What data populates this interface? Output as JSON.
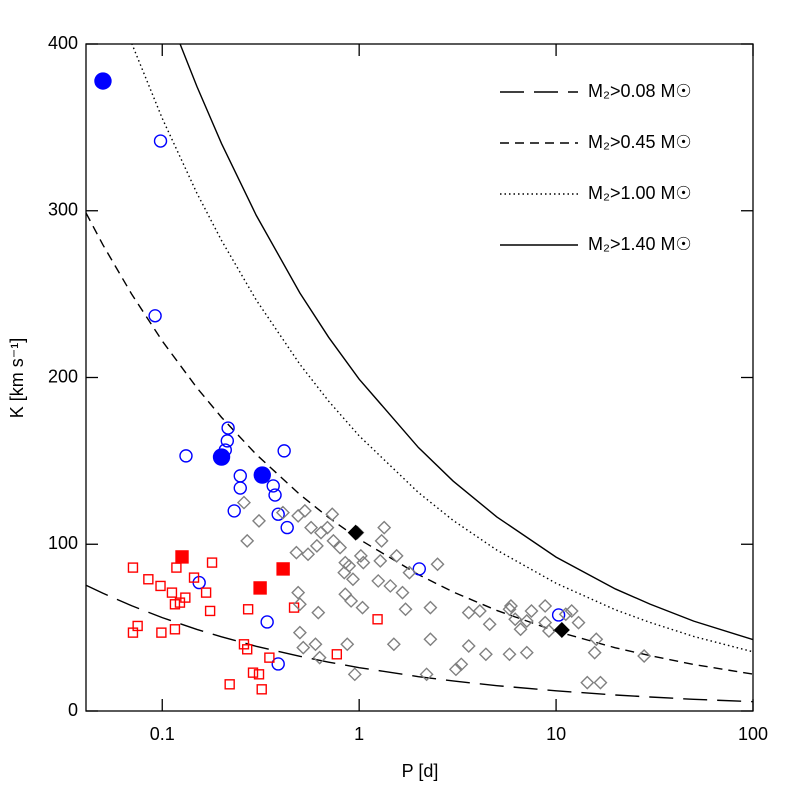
{
  "chart_data": {
    "type": "scatter",
    "x_label": "P [d]",
    "y_label": "K [km s⁻¹]",
    "xlim": [
      0.041,
      100
    ],
    "xscale": "log",
    "xticks": [
      0.1,
      1,
      10,
      100
    ],
    "ylim": [
      0,
      400
    ],
    "yticks": [
      0,
      100,
      200,
      300,
      400
    ],
    "legend": "upper right",
    "series": [
      {
        "name": "M₂>0.08 M☉",
        "color": "#000000",
        "line_style": "long-dash",
        "x": [
          0.041,
          0.05,
          0.07,
          0.1,
          0.15,
          0.2,
          0.3,
          0.5,
          0.7,
          1,
          2,
          3,
          5,
          10,
          20,
          30,
          50,
          100
        ],
        "values": [
          75.4,
          70.6,
          63.1,
          56.0,
          48.9,
          44.5,
          38.8,
          32.8,
          29.3,
          26,
          20.6,
          18.0,
          15.2,
          12.1,
          9.6,
          8.4,
          7.0,
          5.6
        ]
      },
      {
        "name": "M₂>0.45 M☉",
        "color": "#000000",
        "line_style": "dash",
        "x": [
          0.041,
          0.05,
          0.07,
          0.1,
          0.15,
          0.2,
          0.3,
          0.5,
          0.7,
          1,
          2,
          3,
          5,
          10,
          20,
          30,
          50,
          100
        ],
        "values": [
          298.7,
          279.5,
          249.9,
          221.9,
          193.8,
          176.1,
          153.9,
          129.8,
          116.0,
          103,
          81.8,
          71.4,
          60.3,
          47.8,
          37.9,
          33.2,
          27.9,
          22.1
        ]
      },
      {
        "name": "M₂>1.00 M☉",
        "color": "#000000",
        "line_style": "dotted",
        "x": [
          0.07,
          0.1,
          0.15,
          0.2,
          0.3,
          0.5,
          0.7,
          1,
          2,
          3,
          5,
          10,
          20,
          30,
          50,
          100
        ],
        "values": [
          400.3,
          355.4,
          310.5,
          282.2,
          246.5,
          207.9,
          185.8,
          165,
          131.0,
          114.3,
          96.5,
          76.6,
          60.7,
          53.1,
          44.7,
          35.5
        ]
      },
      {
        "name": "M₂>1.40 M☉",
        "color": "#000000",
        "line_style": "solid",
        "x": [
          0.123,
          0.15,
          0.2,
          0.3,
          0.5,
          0.7,
          1,
          2,
          3,
          5,
          10,
          20,
          30,
          50,
          100
        ],
        "values": [
          400.2,
          374.5,
          340.3,
          297.3,
          250.7,
          224.1,
          199,
          158.0,
          137.9,
          116.4,
          92.3,
          73.2,
          64.1,
          53.9,
          42.8
        ]
      },
      {
        "color": "#0000ff",
        "marker": "circle",
        "filled": true,
        "x": [
          0.05,
          0.2,
          0.322
        ],
        "values": [
          377.8,
          152.3,
          141.5
        ]
      },
      {
        "color": "#0000ff",
        "marker": "circle",
        "filled": false,
        "x": [
          0.098,
          0.092,
          0.216,
          0.214,
          0.209,
          0.132,
          0.416,
          0.249,
          0.249,
          0.366,
          0.374,
          0.388,
          0.232,
          0.431,
          0.154,
          0.341,
          0.388,
          2.02,
          10.3
        ],
        "values": [
          341.8,
          237,
          169.7,
          162,
          156.5,
          153,
          156,
          141,
          133.7,
          135,
          129.5,
          118,
          120,
          110,
          77,
          53.4,
          28.2,
          85.2,
          57.6
        ]
      },
      {
        "color": "#ff0000",
        "marker": "square",
        "filled": true,
        "x": [
          0.126,
          0.314,
          0.411
        ],
        "values": [
          92.4,
          73.8,
          85.2
        ]
      },
      {
        "color": "#ff0000",
        "marker": "square",
        "filled": false,
        "x": [
          0.071,
          0.085,
          0.098,
          0.118,
          0.112,
          0.123,
          0.116,
          0.131,
          0.145,
          0.167,
          0.179,
          0.175,
          0.116,
          0.099,
          0.071,
          0.075,
          0.273,
          0.467,
          0.26,
          0.27,
          0.289,
          0.31,
          0.22,
          0.32,
          0.35,
          0.77,
          1.24
        ],
        "values": [
          86,
          79,
          75,
          86,
          71,
          65,
          64,
          68,
          80,
          71,
          89,
          60,
          49,
          47,
          47,
          51,
          61,
          62,
          40,
          37,
          23,
          22,
          16,
          13,
          32,
          34,
          55
        ]
      },
      {
        "color": "#808080",
        "marker": "diamond",
        "filled": false,
        "x": [
          0.26,
          0.31,
          0.27,
          0.41,
          0.49,
          0.53,
          0.57,
          0.64,
          0.69,
          0.74,
          0.61,
          0.48,
          0.55,
          0.8,
          0.85,
          0.73,
          0.98,
          1.02,
          0.84,
          0.89,
          0.93,
          1.05,
          1.25,
          1.34,
          1.3,
          1.28,
          1.55,
          1.8,
          2.5,
          0.49,
          0.5,
          0.62,
          0.85,
          0.91,
          1.04,
          1.44,
          1.66,
          1.72,
          2.3,
          0.5,
          0.52,
          0.6,
          0.63,
          0.87,
          0.95,
          1.5,
          2.3,
          2.2,
          3.1,
          3.3,
          3.6,
          4.1,
          4.6,
          4.4,
          3.6,
          5.8,
          5.9,
          6.2,
          6.6,
          5.8,
          7.1,
          7.1,
          7.5,
          8.8,
          8.8,
          9.2,
          11.2,
          12,
          13,
          16,
          15.7,
          14.4,
          16.8,
          28
        ],
        "values": [
          125,
          114,
          102,
          119,
          117,
          120,
          110,
          107,
          110,
          102,
          99,
          95,
          94,
          98,
          89,
          118,
          107,
          93,
          83,
          87,
          79,
          89,
          78,
          110,
          102,
          90,
          93,
          83,
          88,
          71,
          64,
          59,
          70,
          66,
          62,
          75,
          71,
          61,
          62,
          47,
          38,
          40,
          32,
          40,
          22,
          40,
          43,
          22,
          25,
          28,
          59,
          60,
          52,
          34,
          39,
          61,
          63,
          55,
          49,
          34,
          35,
          54,
          60,
          63,
          53,
          48,
          58,
          60,
          53,
          43,
          35,
          17,
          17,
          33
        ]
      },
      {
        "color": "#000000",
        "marker": "diamond",
        "filled": true,
        "x": [
          0.96,
          10.7
        ],
        "values": [
          107,
          48.6
        ]
      }
    ]
  }
}
